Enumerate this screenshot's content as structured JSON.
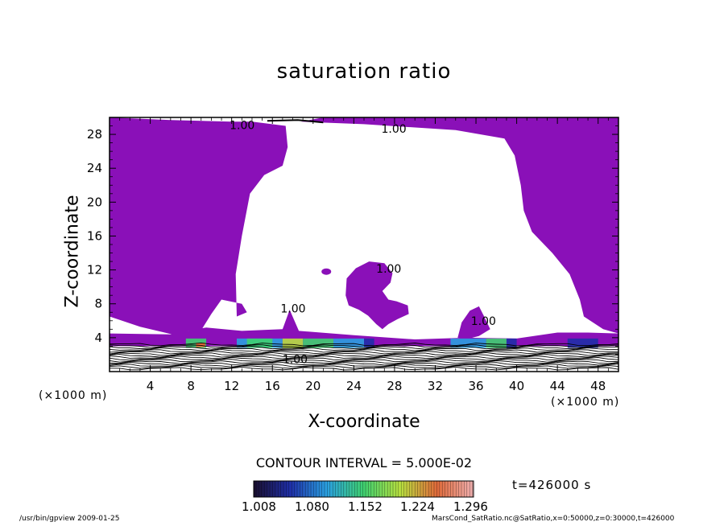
{
  "chart_data": {
    "type": "heatmap",
    "title": "saturation ratio",
    "xlabel": "X-coordinate",
    "ylabel": "Z-coordinate",
    "x_unit": "(×1000 m)",
    "x_ticks": [
      4,
      8,
      12,
      16,
      20,
      24,
      28,
      32,
      36,
      40,
      44,
      48
    ],
    "y_ticks": [
      4,
      8,
      12,
      16,
      20,
      24,
      28
    ],
    "xlim": [
      0,
      50
    ],
    "ylim": [
      0,
      30
    ],
    "contour_interval": "CONTOUR INTERVAL = 5.000E-02",
    "time_label": "t=426000 s",
    "colorbar": {
      "labels": [
        "1.008",
        "1.080",
        "1.152",
        "1.224",
        "1.296"
      ],
      "colors": [
        "#1a0f2e",
        "#1f2fa8",
        "#2aa0e0",
        "#3fd070",
        "#b8e040",
        "#e06a3a",
        "#f0b0b0"
      ]
    },
    "contour_labels": [
      {
        "text": "1.00",
        "x": 11.8,
        "y": 28.6
      },
      {
        "text": "1.00",
        "x": 26.7,
        "y": 28.2
      },
      {
        "text": "1.00",
        "x": 26.2,
        "y": 11.7
      },
      {
        "text": "1.00",
        "x": 16.8,
        "y": 7.0
      },
      {
        "text": "1.00",
        "x": 35.5,
        "y": 5.5
      },
      {
        "text": "1.00",
        "x": 17.0,
        "y": 1.0
      }
    ],
    "fill_color": "#8a10b8"
  },
  "footer": {
    "left": "/usr/bin/gpview  2009-01-25",
    "right": "MarsCond_SatRatio.nc@SatRatio,x=0:50000,z=0:30000,t=426000"
  }
}
